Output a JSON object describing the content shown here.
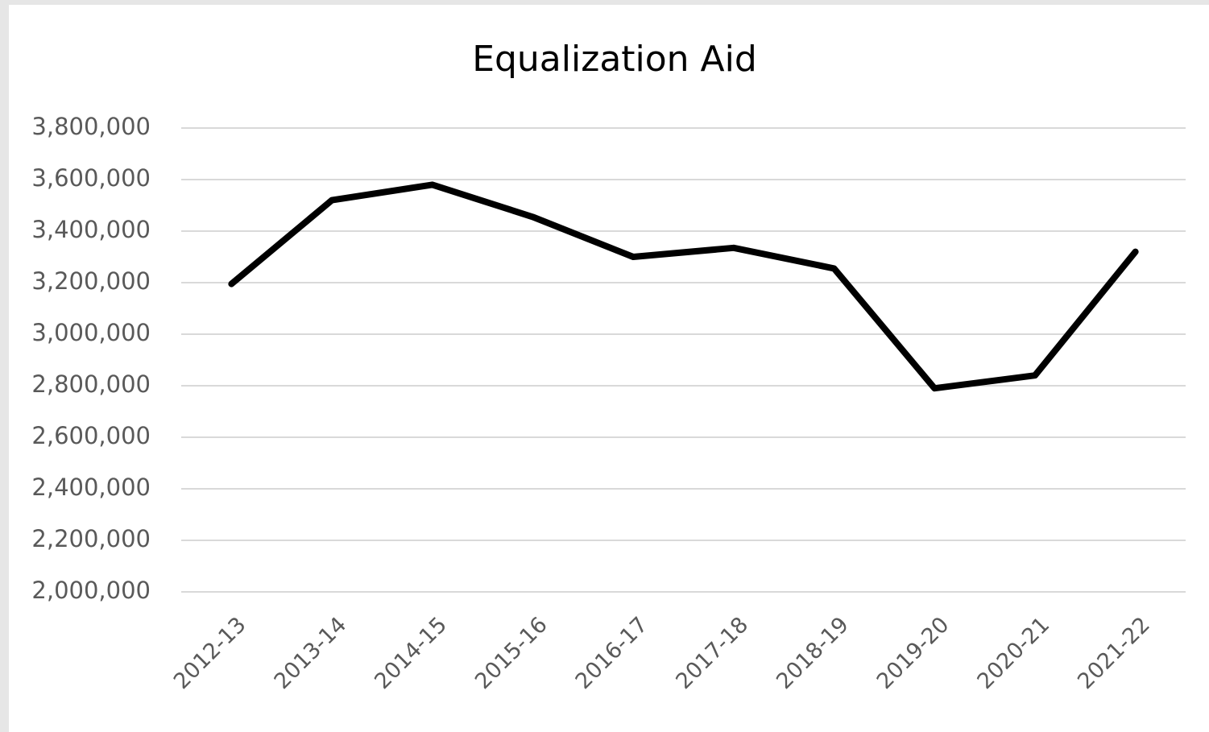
{
  "chart_data": {
    "type": "line",
    "title": "Equalization Aid",
    "categories": [
      "2012-13",
      "2013-14",
      "2014-15",
      "2015-16",
      "2016-17",
      "2017-18",
      "2018-19",
      "2019-20",
      "2020-21",
      "2021-22"
    ],
    "series": [
      {
        "name": "Equalization Aid",
        "color": "#000000",
        "values": [
          3195000,
          3520000,
          3580000,
          3455000,
          3300000,
          3335000,
          3255000,
          2790000,
          2840000,
          3320000
        ]
      }
    ],
    "ylim": [
      2000000,
      3800000
    ],
    "yticks": [
      {
        "value": 2000000,
        "label": "2,000,000"
      },
      {
        "value": 2200000,
        "label": "2,200,000"
      },
      {
        "value": 2400000,
        "label": "2,400,000"
      },
      {
        "value": 2600000,
        "label": "2,600,000"
      },
      {
        "value": 2800000,
        "label": "2,800,000"
      },
      {
        "value": 3000000,
        "label": "3,000,000"
      },
      {
        "value": 3200000,
        "label": "3,200,000"
      },
      {
        "value": 3400000,
        "label": "3,400,000"
      },
      {
        "value": 3600000,
        "label": "3,600,000"
      },
      {
        "value": 3800000,
        "label": "3,800,000"
      }
    ],
    "grid": true
  }
}
